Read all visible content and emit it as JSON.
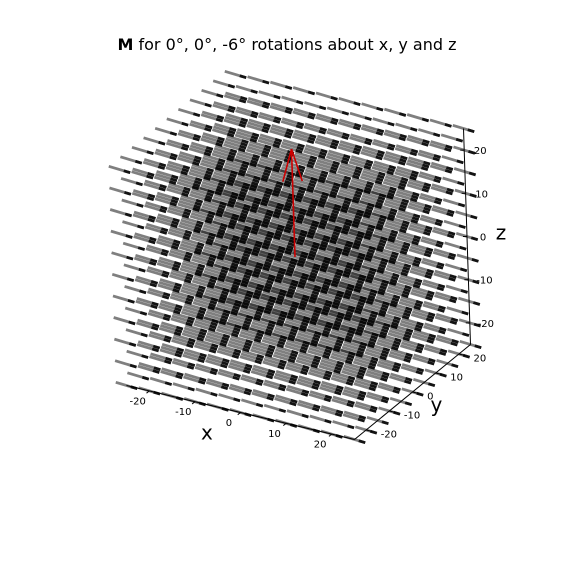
{
  "chart_data": {
    "type": "quiver3d",
    "title": {
      "bold": "M",
      "rest": " for 0°, 0°, -6° rotations about x, y and z"
    },
    "xlabel": "x",
    "ylabel": "y",
    "zlabel": "z",
    "xlim": [
      -25,
      25
    ],
    "ylim": [
      -25,
      25
    ],
    "zlim": [
      -25,
      25
    ],
    "xticks": [
      -20,
      -10,
      0,
      10,
      20
    ],
    "yticks": [
      -20,
      -10,
      0,
      10,
      20
    ],
    "zticks": [
      -20,
      -10,
      0,
      10,
      20
    ],
    "grid": [
      -25,
      -20,
      -15,
      -10,
      -5,
      0,
      5,
      10,
      15,
      20,
      25
    ],
    "vector_field": {
      "description": "unit moment vectors at every grid node",
      "direction": [
        0.995,
        -0.105,
        0
      ],
      "color": "#000000",
      "alpha": 0.5
    },
    "highlight_vector": {
      "origin": [
        0,
        0,
        0
      ],
      "components": [
        0,
        0,
        25
      ],
      "color": "#cc0000"
    },
    "colors": {
      "background": "#ffffff",
      "arrows": "#000000",
      "highlight": "#cc0000"
    }
  }
}
